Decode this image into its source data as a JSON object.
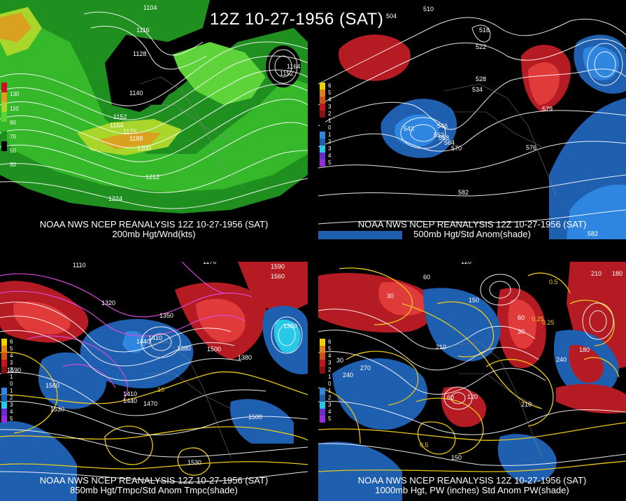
{
  "title": "12Z 10-27-1956 (SAT)",
  "colors": {
    "bg": "#000000",
    "green_dark": "#1f8f1f",
    "green_mid": "#35b82a",
    "green_light": "#5fd43a",
    "yellow_green": "#a8d62a",
    "orange": "#d9a11f",
    "red_strong": "#c4141e",
    "red": "#b51b22",
    "blue": "#1f5fb0",
    "blue_light": "#2f86e0",
    "cyan": "#27c8e8",
    "contour": "#ffffff",
    "temp_yellow": "#e8c81a",
    "temp_magenta": "#e04ae0"
  },
  "panels": [
    {
      "id": "p200",
      "caption_line1": "NOAA NWS NCEP REANALYSIS 12Z 10-27-1956 (SAT)",
      "caption_line2": "200mb Hgt/Wnd(kts)",
      "legend": [
        "130",
        "110",
        "90",
        "70",
        "50",
        "30"
      ],
      "labels": [
        "1104",
        "1116",
        "1128",
        "1140",
        "1152",
        "1164",
        "1176",
        "1188",
        "1200",
        "1212",
        "1224",
        "1164",
        "1152"
      ]
    },
    {
      "id": "p500",
      "caption_line1": "NOAA NWS NCEP REANALYSIS 12Z 10-27-1956 (SAT)",
      "caption_line2": "500mb Hgt/Std Anom(shade)",
      "legend": [
        "6",
        "5",
        "4",
        "3",
        "2",
        "1",
        "0",
        "1",
        "2",
        "3",
        "4",
        "5"
      ],
      "labels": [
        "504",
        "510",
        "516",
        "522",
        "534",
        "528",
        "546",
        "552",
        "558",
        "564",
        "570",
        "576",
        "582",
        "582",
        "579",
        "543"
      ]
    },
    {
      "id": "p850",
      "caption_line1": "NOAA NWS NCEP REANALYSIS 12Z 10-27-1956 (SAT)",
      "caption_line2": "850mb Hgt/Tmpc/Std Anom Tmpc(shade)",
      "legend": [
        "6",
        "5",
        "4",
        "3",
        "2",
        "1",
        "0",
        "1",
        "2",
        "3",
        "4",
        "5"
      ],
      "labels": [
        "1110",
        "1170",
        "1590",
        "1560",
        "1320",
        "1350",
        "1410",
        "1380",
        "1440",
        "1500",
        "1470",
        "1530",
        "1560",
        "1590",
        "1410",
        "1440",
        "1350",
        "1380",
        "1500",
        "1530",
        "10"
      ]
    },
    {
      "id": "p1000",
      "caption_line1": "NOAA NWS NCEP REANALYSIS 12Z 10-27-1956 (SAT)",
      "caption_line2": "1000mb Hgt, PW (inches) Std Anom PW(shade)",
      "legend": [
        "6",
        "5",
        "4",
        "3",
        "2",
        "1",
        "0",
        "1",
        "2",
        "3",
        "4",
        "5"
      ],
      "labels": [
        "120",
        "210",
        "180",
        "60",
        "30",
        "150",
        "0.5",
        "0.25",
        "240",
        "270",
        "210",
        "30",
        "60",
        "120",
        "210",
        "0.25",
        "0.5",
        "150",
        "60",
        "30",
        "180",
        "240"
      ]
    }
  ]
}
